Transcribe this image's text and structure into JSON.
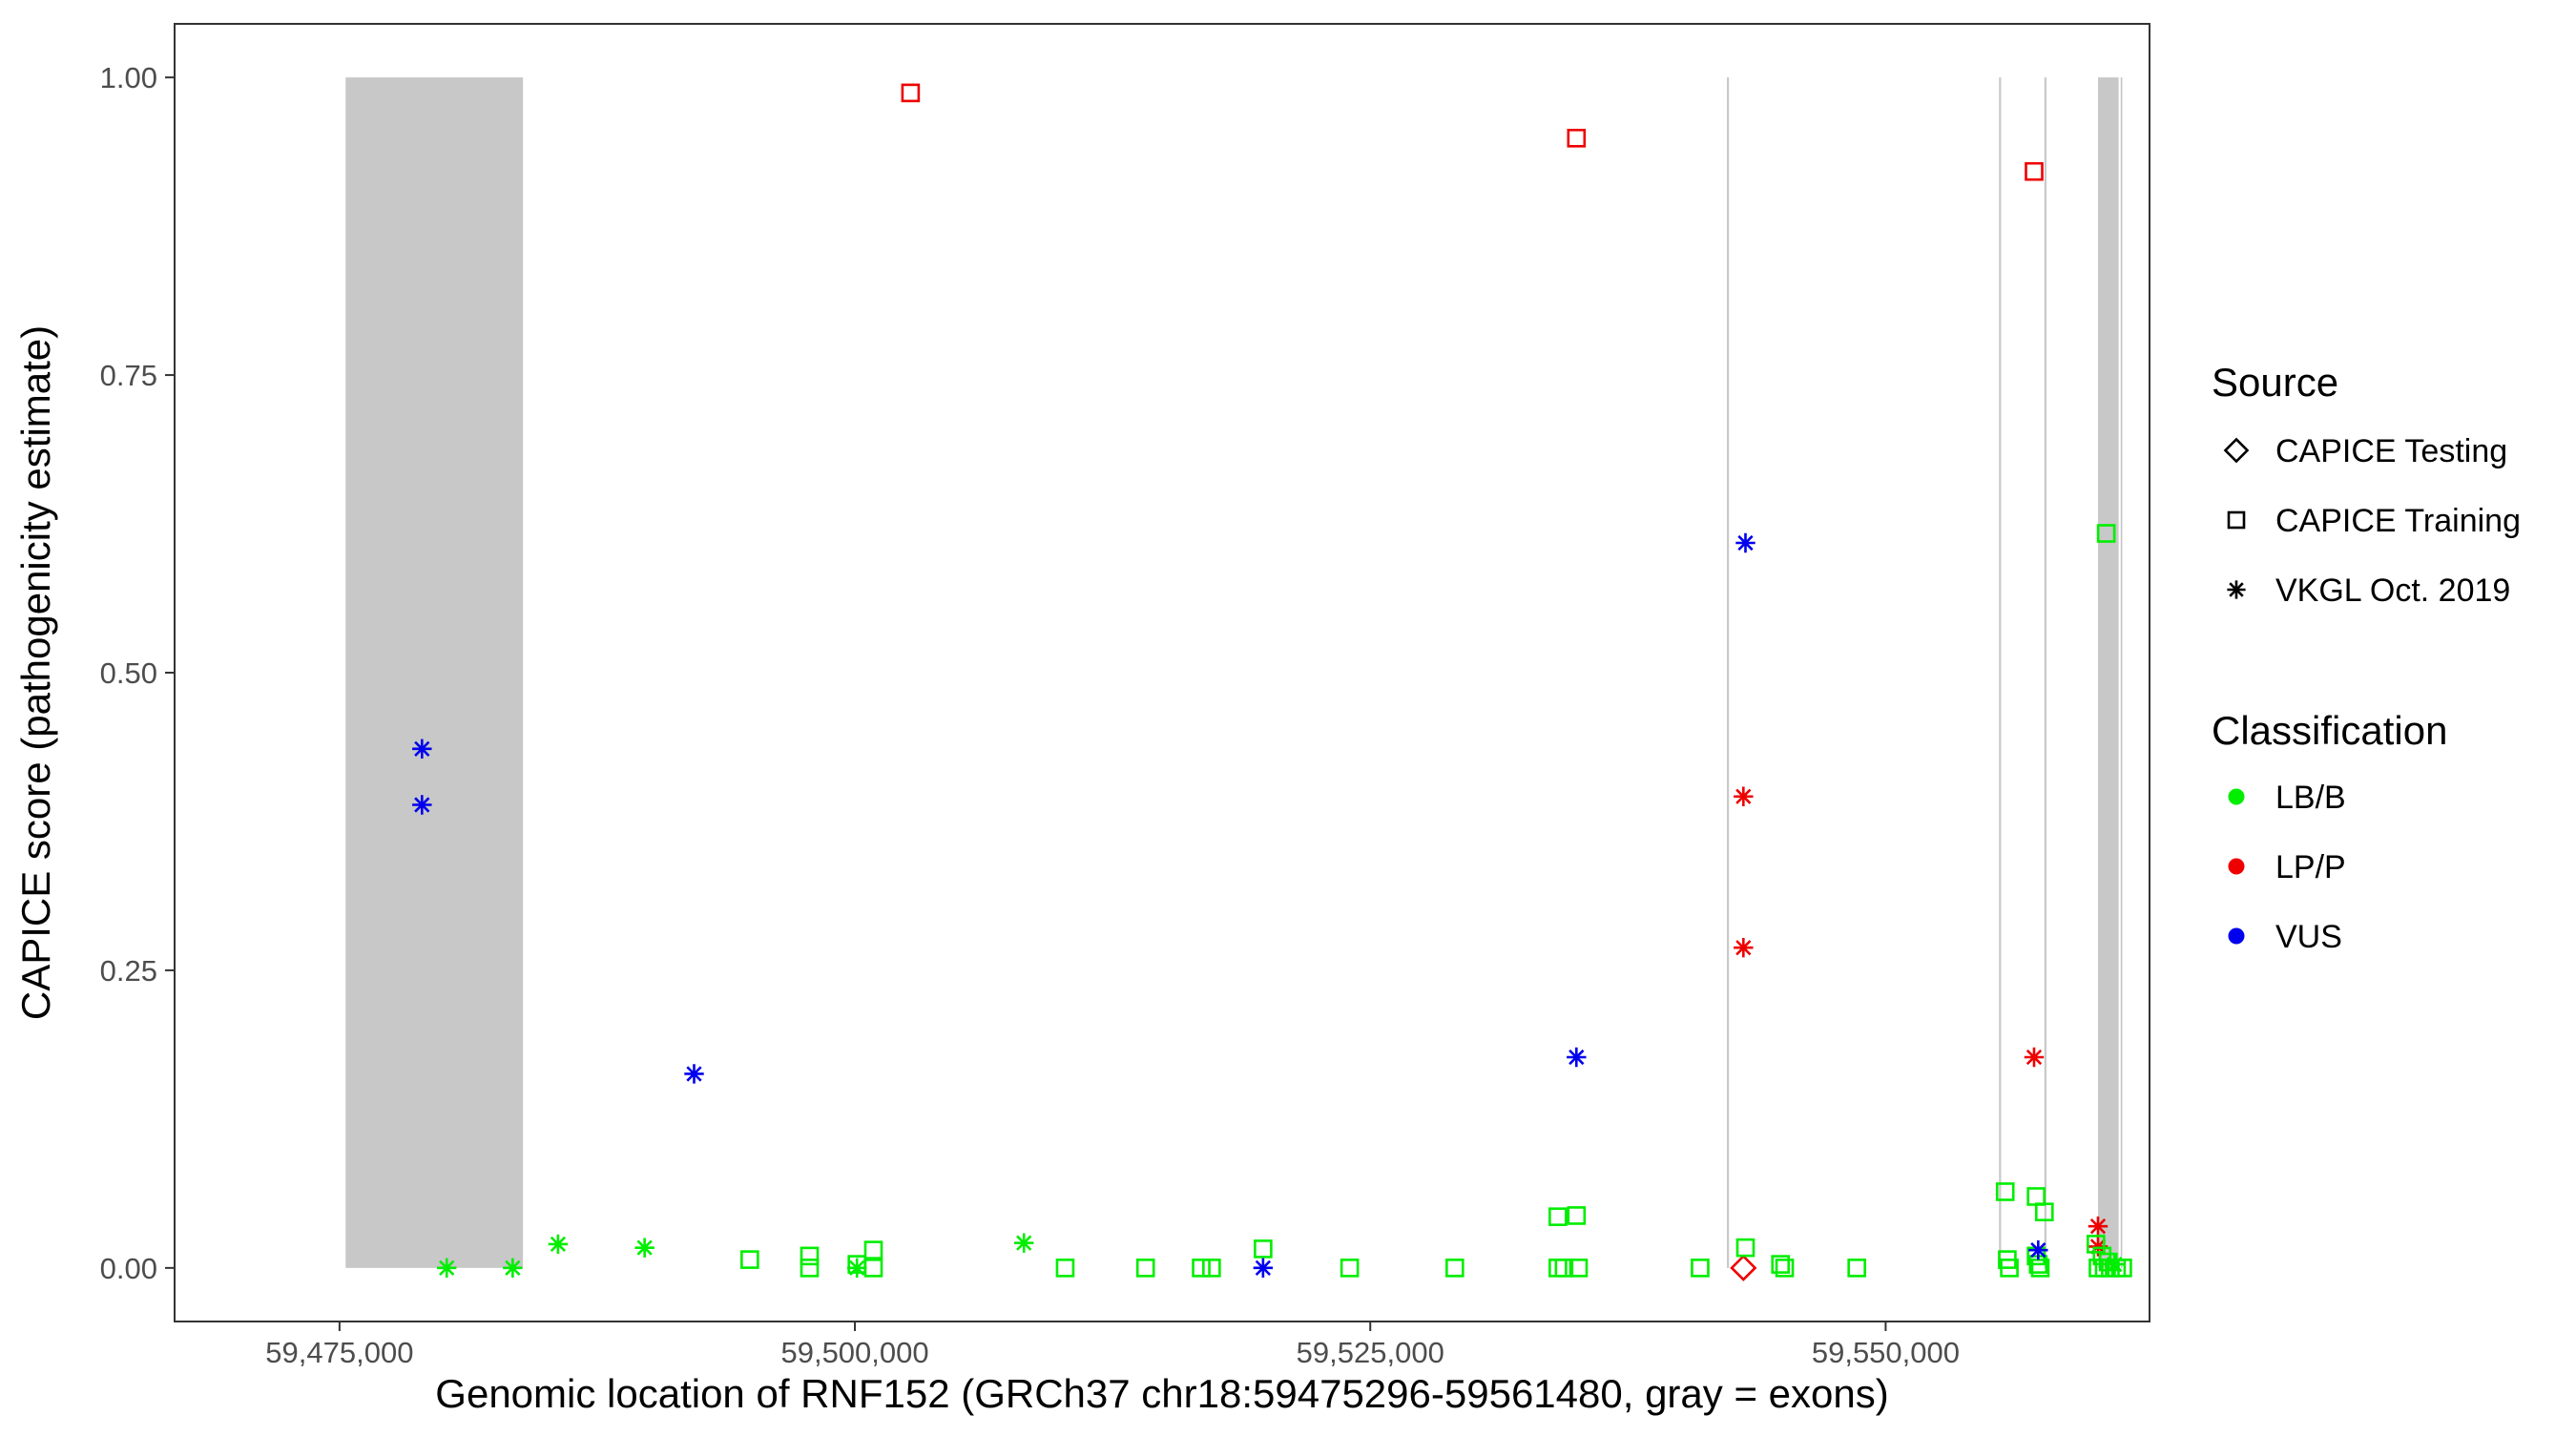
{
  "chart_data": {
    "type": "scatter",
    "title": "",
    "xlabel": "Genomic location of RNF152 (GRCh37 chr18:59475296-59561480, gray = exons)",
    "ylabel": "CAPICE score (pathogenicity estimate)",
    "xlim": [
      59467000,
      59562800
    ],
    "ylim": [
      -0.045,
      1.045
    ],
    "x_ticks": [
      59475000,
      59500000,
      59525000,
      59550000
    ],
    "x_tick_labels": [
      "59,475,000",
      "59,500,000",
      "59,525,000",
      "59,550,000"
    ],
    "y_ticks": [
      0,
      0.25,
      0.5,
      0.75,
      1.0
    ],
    "y_tick_labels": [
      "0.00",
      "0.25",
      "0.50",
      "0.75",
      "1.00"
    ],
    "grid": false,
    "exons": [
      {
        "start": 59475296,
        "end": 59483900
      },
      {
        "start": 59542300,
        "end": 59542400
      },
      {
        "start": 59555500,
        "end": 59555600
      },
      {
        "start": 59557700,
        "end": 59557800
      },
      {
        "start": 59560300,
        "end": 59561300
      },
      {
        "start": 59561400,
        "end": 59561480
      }
    ],
    "exon_color": "#c8c8c8",
    "legend_position": "right",
    "legend": {
      "source_title": "Source",
      "source_items": [
        {
          "label": "CAPICE Testing",
          "shape": "diamond"
        },
        {
          "label": "CAPICE Training",
          "shape": "square"
        },
        {
          "label": "VKGL Oct. 2019",
          "shape": "asterisk"
        }
      ],
      "class_title": "Classification",
      "class_items": [
        {
          "label": "LB/B",
          "color": "#00ee00"
        },
        {
          "label": "LP/P",
          "color": "#ee0000"
        },
        {
          "label": "VUS",
          "color": "#0000ee"
        }
      ]
    },
    "points": [
      {
        "x": 59479000,
        "y": 0.436,
        "shape": "asterisk",
        "cls": "VUS"
      },
      {
        "x": 59479000,
        "y": 0.389,
        "shape": "asterisk",
        "cls": "VUS"
      },
      {
        "x": 59480200,
        "y": 0.0,
        "shape": "asterisk",
        "cls": "LB/B"
      },
      {
        "x": 59483400,
        "y": 0.0,
        "shape": "asterisk",
        "cls": "LB/B"
      },
      {
        "x": 59485600,
        "y": 0.02,
        "shape": "asterisk",
        "cls": "LB/B"
      },
      {
        "x": 59489800,
        "y": 0.017,
        "shape": "asterisk",
        "cls": "LB/B"
      },
      {
        "x": 59492200,
        "y": 0.163,
        "shape": "asterisk",
        "cls": "VUS"
      },
      {
        "x": 59494900,
        "y": 0.007,
        "shape": "square",
        "cls": "LB/B"
      },
      {
        "x": 59497800,
        "y": 0.01,
        "shape": "square",
        "cls": "LB/B"
      },
      {
        "x": 59497800,
        "y": 0.0,
        "shape": "square",
        "cls": "LB/B"
      },
      {
        "x": 59500100,
        "y": 0.003,
        "shape": "square",
        "cls": "LB/B"
      },
      {
        "x": 59500100,
        "y": 0.0,
        "shape": "asterisk",
        "cls": "LB/B"
      },
      {
        "x": 59500900,
        "y": 0.015,
        "shape": "square",
        "cls": "LB/B"
      },
      {
        "x": 59500900,
        "y": 0.0,
        "shape": "square",
        "cls": "LB/B"
      },
      {
        "x": 59502700,
        "y": 0.987,
        "shape": "square",
        "cls": "LP/P"
      },
      {
        "x": 59508200,
        "y": 0.021,
        "shape": "asterisk",
        "cls": "LB/B"
      },
      {
        "x": 59510200,
        "y": 0.0,
        "shape": "square",
        "cls": "LB/B"
      },
      {
        "x": 59514100,
        "y": 0.0,
        "shape": "square",
        "cls": "LB/B"
      },
      {
        "x": 59516800,
        "y": 0.0,
        "shape": "square",
        "cls": "LB/B"
      },
      {
        "x": 59517300,
        "y": 0.0,
        "shape": "square",
        "cls": "LB/B"
      },
      {
        "x": 59519800,
        "y": 0.016,
        "shape": "square",
        "cls": "LB/B"
      },
      {
        "x": 59519800,
        "y": 0.0,
        "shape": "asterisk",
        "cls": "VUS"
      },
      {
        "x": 59524000,
        "y": 0.0,
        "shape": "square",
        "cls": "LB/B"
      },
      {
        "x": 59529100,
        "y": 0.0,
        "shape": "square",
        "cls": "LB/B"
      },
      {
        "x": 59534100,
        "y": 0.043,
        "shape": "square",
        "cls": "LB/B"
      },
      {
        "x": 59535000,
        "y": 0.044,
        "shape": "square",
        "cls": "LB/B"
      },
      {
        "x": 59534100,
        "y": 0.0,
        "shape": "square",
        "cls": "LB/B"
      },
      {
        "x": 59534400,
        "y": 0.0,
        "shape": "square",
        "cls": "LB/B"
      },
      {
        "x": 59535100,
        "y": 0.0,
        "shape": "square",
        "cls": "LB/B"
      },
      {
        "x": 59535000,
        "y": 0.949,
        "shape": "square",
        "cls": "LP/P"
      },
      {
        "x": 59535000,
        "y": 0.177,
        "shape": "asterisk",
        "cls": "VUS"
      },
      {
        "x": 59541000,
        "y": 0.0,
        "shape": "square",
        "cls": "LB/B"
      },
      {
        "x": 59543100,
        "y": 0.0,
        "shape": "diamond",
        "cls": "LP/P"
      },
      {
        "x": 59543200,
        "y": 0.017,
        "shape": "square",
        "cls": "LB/B"
      },
      {
        "x": 59543200,
        "y": 0.609,
        "shape": "asterisk",
        "cls": "VUS"
      },
      {
        "x": 59543100,
        "y": 0.396,
        "shape": "asterisk",
        "cls": "LP/P"
      },
      {
        "x": 59543100,
        "y": 0.269,
        "shape": "asterisk",
        "cls": "LP/P"
      },
      {
        "x": 59544900,
        "y": 0.003,
        "shape": "square",
        "cls": "LB/B"
      },
      {
        "x": 59545100,
        "y": 0.0,
        "shape": "square",
        "cls": "LB/B"
      },
      {
        "x": 59548600,
        "y": 0.0,
        "shape": "square",
        "cls": "LB/B"
      },
      {
        "x": 59555800,
        "y": 0.064,
        "shape": "square",
        "cls": "LB/B"
      },
      {
        "x": 59555900,
        "y": 0.007,
        "shape": "square",
        "cls": "LB/B"
      },
      {
        "x": 59556000,
        "y": 0.0,
        "shape": "square",
        "cls": "LB/B"
      },
      {
        "x": 59557200,
        "y": 0.921,
        "shape": "square",
        "cls": "LP/P"
      },
      {
        "x": 59557300,
        "y": 0.06,
        "shape": "square",
        "cls": "LB/B"
      },
      {
        "x": 59557700,
        "y": 0.047,
        "shape": "square",
        "cls": "LB/B"
      },
      {
        "x": 59557200,
        "y": 0.177,
        "shape": "asterisk",
        "cls": "LP/P"
      },
      {
        "x": 59557300,
        "y": 0.01,
        "shape": "square",
        "cls": "LB/B"
      },
      {
        "x": 59557400,
        "y": 0.003,
        "shape": "square",
        "cls": "LB/B"
      },
      {
        "x": 59557500,
        "y": 0.0,
        "shape": "square",
        "cls": "LB/B"
      },
      {
        "x": 59557400,
        "y": 0.015,
        "shape": "asterisk",
        "cls": "VUS"
      },
      {
        "x": 59560700,
        "y": 0.617,
        "shape": "square",
        "cls": "LB/B"
      },
      {
        "x": 59560300,
        "y": 0.035,
        "shape": "asterisk",
        "cls": "LP/P"
      },
      {
        "x": 59560300,
        "y": 0.018,
        "shape": "asterisk",
        "cls": "LP/P"
      },
      {
        "x": 59560200,
        "y": 0.02,
        "shape": "square",
        "cls": "LB/B"
      },
      {
        "x": 59560500,
        "y": 0.01,
        "shape": "square",
        "cls": "LB/B"
      },
      {
        "x": 59560800,
        "y": 0.005,
        "shape": "square",
        "cls": "LB/B"
      },
      {
        "x": 59560300,
        "y": 0.0,
        "shape": "square",
        "cls": "LB/B"
      },
      {
        "x": 59560600,
        "y": 0.0,
        "shape": "square",
        "cls": "LB/B"
      },
      {
        "x": 59560900,
        "y": 0.0,
        "shape": "square",
        "cls": "LB/B"
      },
      {
        "x": 59561200,
        "y": 0.0,
        "shape": "square",
        "cls": "LB/B"
      },
      {
        "x": 59561500,
        "y": 0.0,
        "shape": "square",
        "cls": "LB/B"
      },
      {
        "x": 59561100,
        "y": 0.003,
        "shape": "asterisk",
        "cls": "LB/B"
      }
    ]
  }
}
